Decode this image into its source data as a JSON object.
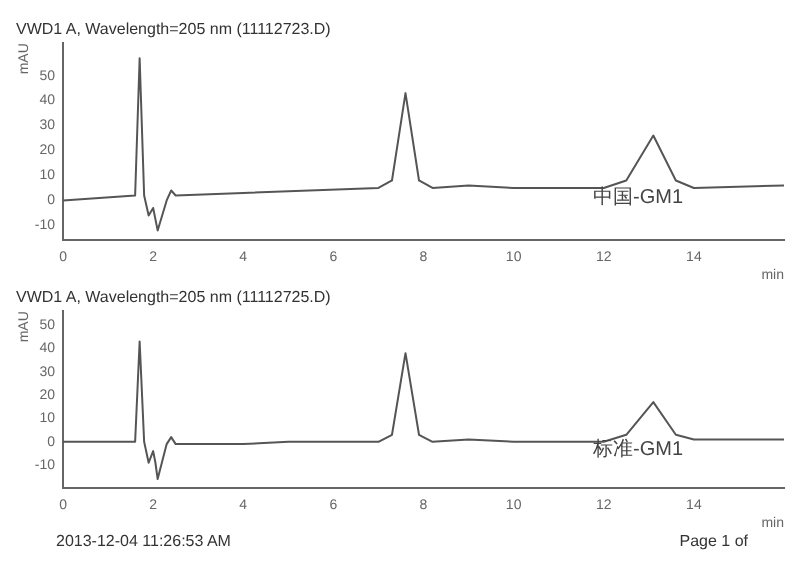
{
  "chart_data": [
    {
      "type": "line",
      "title": "VWD1 A, Wavelength=205 nm (11112723.D)",
      "xlabel": "min",
      "ylabel": "mAU",
      "xlim": [
        0,
        16
      ],
      "xticks": [
        0,
        2,
        4,
        6,
        8,
        10,
        12,
        14
      ],
      "ylim": [
        -16,
        63
      ],
      "yticks": [
        -10,
        0,
        10,
        20,
        30,
        40,
        50
      ],
      "grid": false,
      "legend": false,
      "marker": "none",
      "line_style": "solid",
      "series": [
        {
          "color": "#555555",
          "x": [
            0,
            1.6,
            1.7,
            1.8,
            1.9,
            2.0,
            2.1,
            2.3,
            2.4,
            2.5,
            4,
            7,
            7.3,
            7.6,
            7.9,
            8.2,
            9,
            10,
            12,
            12.5,
            13.1,
            13.6,
            14,
            16
          ],
          "values": [
            0,
            2,
            57,
            2,
            -6,
            -3,
            -12,
            0,
            4,
            2,
            3,
            5,
            8,
            43,
            8,
            5,
            6,
            5,
            5,
            8,
            26,
            8,
            5,
            6
          ]
        }
      ],
      "annotations": [
        "中国-GM1"
      ]
    },
    {
      "type": "line",
      "title": "VWD1 A, Wavelength=205 nm (11112725.D)",
      "xlabel": "min",
      "ylabel": "mAU",
      "xlim": [
        0,
        16
      ],
      "xticks": [
        0,
        2,
        4,
        6,
        8,
        10,
        12,
        14
      ],
      "ylim": [
        -20,
        56
      ],
      "yticks": [
        -10,
        0,
        10,
        20,
        30,
        40,
        50
      ],
      "grid": false,
      "legend": false,
      "marker": "none",
      "line_style": "solid",
      "series": [
        {
          "color": "#555555",
          "x": [
            0,
            1.6,
            1.7,
            1.8,
            1.9,
            2.0,
            2.05,
            2.1,
            2.3,
            2.4,
            2.5,
            4,
            5,
            7,
            7.3,
            7.6,
            7.9,
            8.2,
            9,
            10,
            12,
            12.5,
            13.1,
            13.6,
            14,
            16
          ],
          "values": [
            0,
            0,
            43,
            0,
            -9,
            -4,
            -9,
            -16,
            -1,
            2,
            -1,
            -1,
            0,
            0,
            3,
            38,
            3,
            0,
            1,
            0,
            0,
            3,
            17,
            3,
            1,
            1
          ]
        }
      ],
      "annotations": [
        "标准-GM1",
        "2013-12-04 11:26:53 AM",
        "Page 1 of"
      ]
    }
  ]
}
